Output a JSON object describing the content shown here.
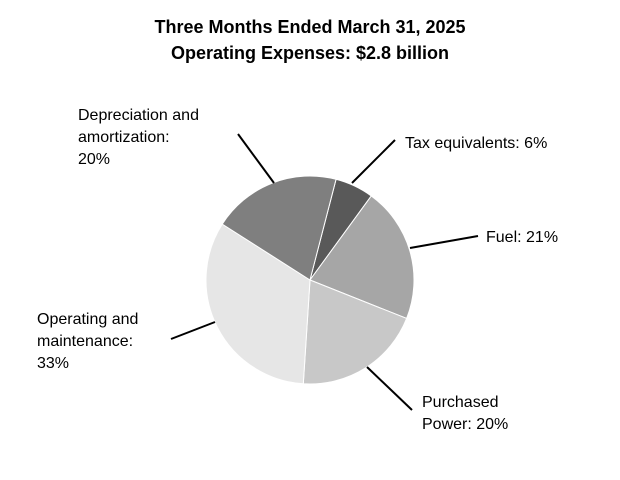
{
  "chart_data": {
    "type": "pie",
    "title": "Three Months Ended March 31, 2025",
    "subtitle": "Operating Expenses: $2.8 billion",
    "values": [
      6,
      21,
      20,
      33,
      20
    ],
    "value_labels": [
      [
        "Tax equivalents: 6%"
      ],
      [
        "Fuel: 21%"
      ],
      [
        "Purchased",
        "Power: 20%"
      ],
      [
        "Operating and",
        "maintenance:",
        "33%"
      ],
      [
        "Depreciation and",
        "amortization:",
        "20%"
      ]
    ],
    "colors": [
      "#595959",
      "#a6a6a6",
      "#c8c8c8",
      "#e6e6e6",
      "#7f7f7f"
    ]
  }
}
